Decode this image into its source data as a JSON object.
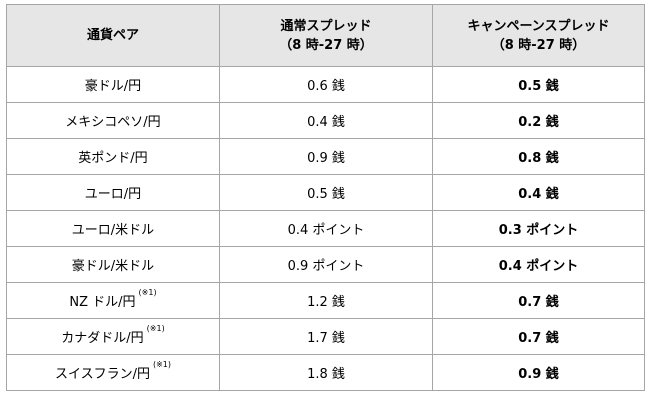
{
  "table": {
    "headers": {
      "pair": "通貨ペア",
      "normal": "通常スプレッド",
      "normal_hours": "（8 時-27 時）",
      "campaign": "キャンペーンスプレッド",
      "campaign_hours": "（8 時-27 時）"
    },
    "rows": [
      {
        "pair": "豪ドル/円",
        "note": "",
        "normal": "0.6 銭",
        "campaign": "0.5 銭"
      },
      {
        "pair": "メキシコペソ/円",
        "note": "",
        "normal": "0.4 銭",
        "campaign": "0.2 銭"
      },
      {
        "pair": "英ポンド/円",
        "note": "",
        "normal": "0.9 銭",
        "campaign": "0.8 銭"
      },
      {
        "pair": "ユーロ/円",
        "note": "",
        "normal": "0.5 銭",
        "campaign": "0.4 銭"
      },
      {
        "pair": "ユーロ/米ドル",
        "note": "",
        "normal": "0.4 ポイント",
        "campaign": "0.3 ポイント"
      },
      {
        "pair": "豪ドル/米ドル",
        "note": "",
        "normal": "0.9 ポイント",
        "campaign": "0.4 ポイント"
      },
      {
        "pair": "NZ ドル/円",
        "note": "(※1)",
        "normal": "1.2 銭",
        "campaign": "0.7 銭"
      },
      {
        "pair": "カナダドル/円",
        "note": "(※1)",
        "normal": "1.7 銭",
        "campaign": "0.7 銭"
      },
      {
        "pair": "スイスフラン/円",
        "note": "(※1)",
        "normal": "1.8 銭",
        "campaign": "0.9 銭"
      }
    ]
  }
}
